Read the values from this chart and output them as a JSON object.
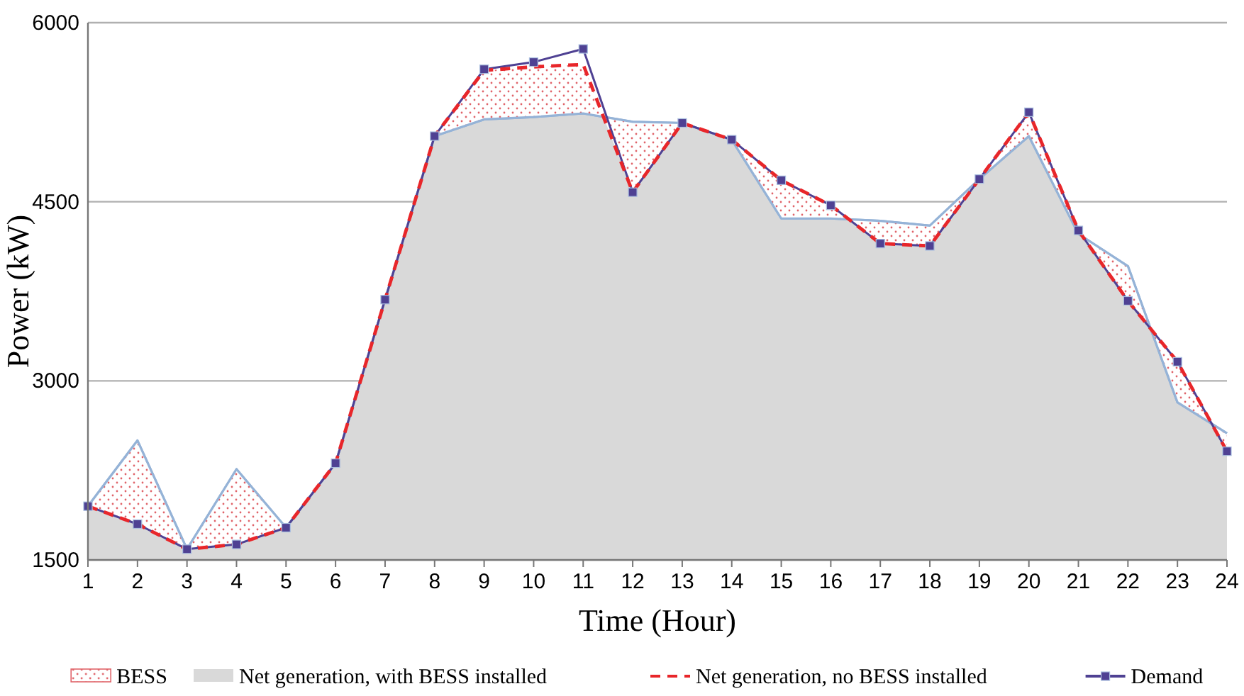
{
  "chart_data": {
    "type": "line",
    "xlabel": "Time (Hour)",
    "ylabel": "Power (kW)",
    "x": [
      1,
      2,
      3,
      4,
      5,
      6,
      7,
      8,
      9,
      10,
      11,
      12,
      13,
      14,
      15,
      16,
      17,
      18,
      19,
      20,
      21,
      22,
      23,
      24
    ],
    "xlim": [
      1,
      24
    ],
    "xticks": [
      1,
      2,
      3,
      4,
      5,
      6,
      7,
      8,
      9,
      10,
      11,
      12,
      13,
      14,
      15,
      16,
      17,
      18,
      19,
      20,
      21,
      22,
      23,
      24
    ],
    "ylim": [
      1500,
      6000
    ],
    "yticks": [
      1500,
      3000,
      4500,
      6000
    ],
    "grid": "y",
    "legend": "bottom",
    "series": [
      {
        "name": "BESS",
        "type": "area",
        "color": "#e0646a",
        "values": [
          null,
          null,
          null,
          null,
          null,
          null,
          null,
          null,
          null,
          null,
          null,
          null,
          null,
          null,
          null,
          null,
          null,
          null,
          null,
          null,
          null,
          null,
          null,
          null
        ],
        "lower": [
          1950,
          2500,
          1590,
          2260,
          1770,
          2310,
          3680,
          5050,
          5190,
          5210,
          5240,
          5170,
          5160,
          5020,
          4360,
          4360,
          4340,
          4300,
          4690,
          5050,
          4230,
          3960,
          2820,
          2560
        ],
        "upper": [
          1950,
          1800,
          1590,
          1630,
          1770,
          2310,
          3680,
          5050,
          5600,
          5630,
          5650,
          4580,
          5160,
          5020,
          4680,
          4470,
          4150,
          4130,
          4690,
          5250,
          4260,
          3670,
          3160,
          2410
        ]
      },
      {
        "name": "Net generation, with BESS installed",
        "type": "area",
        "color": "#d9d9d9",
        "values": [
          1950,
          2500,
          1590,
          2260,
          1770,
          2310,
          3680,
          5050,
          5190,
          5210,
          5240,
          5170,
          5160,
          5020,
          4360,
          4360,
          4340,
          4300,
          4690,
          5050,
          4230,
          3960,
          2820,
          2560
        ]
      },
      {
        "name": "Net generation, no BESS installed",
        "type": "line",
        "color": "#e8262a",
        "line_style": "dashed",
        "marker": "none",
        "values": [
          1950,
          1800,
          1590,
          1630,
          1770,
          2310,
          3680,
          5050,
          5600,
          5630,
          5650,
          4580,
          5160,
          5020,
          4680,
          4470,
          4150,
          4130,
          4690,
          5250,
          4260,
          3670,
          3160,
          2410
        ]
      },
      {
        "name": "Demand",
        "type": "line",
        "color": "#4f4193",
        "line_style": "solid",
        "marker": "square",
        "values": [
          1950,
          1800,
          1590,
          1630,
          1770,
          2310,
          3680,
          5050,
          5610,
          5670,
          5780,
          4580,
          5160,
          5020,
          4680,
          4470,
          4150,
          4130,
          4690,
          5250,
          4260,
          3670,
          3160,
          2410
        ]
      }
    ]
  }
}
